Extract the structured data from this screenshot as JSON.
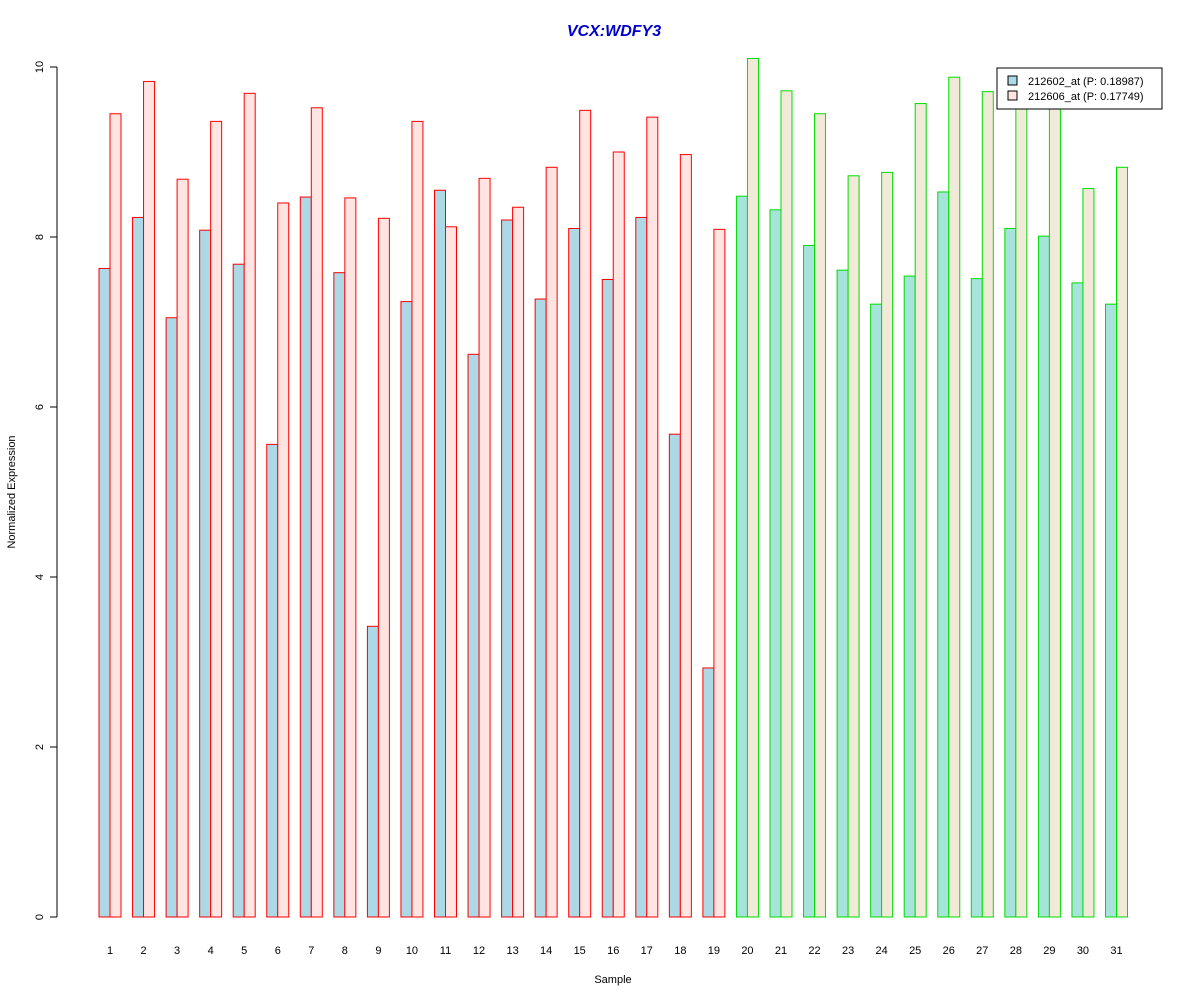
{
  "chart_data": {
    "type": "bar",
    "title": "VCX:WDFY3",
    "xlabel": "Sample",
    "ylabel": "Normalized Expression",
    "ylim": [
      0,
      10
    ],
    "yticks": [
      "0",
      "2",
      "4",
      "6",
      "8",
      "10"
    ],
    "grid": false,
    "legend_position": "top-right",
    "categories": [
      "1",
      "2",
      "3",
      "4",
      "5",
      "6",
      "7",
      "8",
      "9",
      "10",
      "11",
      "12",
      "13",
      "14",
      "15",
      "16",
      "17",
      "18",
      "19",
      "20",
      "21",
      "22",
      "23",
      "24",
      "25",
      "26",
      "27",
      "28",
      "29",
      "30",
      "31"
    ],
    "groups": [
      {
        "samples": [
          1,
          19
        ],
        "border_color": "#ff0000"
      },
      {
        "samples": [
          20,
          31
        ],
        "border_color": "#00dd00"
      }
    ],
    "series": [
      {
        "name": "212602_at (P: 0.18987)",
        "fill_colors": [
          "#add8e6",
          "#a6e3da"
        ],
        "values": [
          7.63,
          8.23,
          7.05,
          8.08,
          7.68,
          5.56,
          8.47,
          7.58,
          3.42,
          7.24,
          8.55,
          6.62,
          8.2,
          7.27,
          8.1,
          7.5,
          8.23,
          5.68,
          2.93,
          8.48,
          8.32,
          7.9,
          7.61,
          7.21,
          7.54,
          8.53,
          7.51,
          8.1,
          8.01,
          7.46,
          7.21
        ]
      },
      {
        "name": "212606_at (P: 0.17749)",
        "fill_colors": [
          "#ffe4e1",
          "#f2ead8"
        ],
        "values": [
          9.45,
          9.83,
          8.68,
          9.36,
          9.69,
          8.4,
          9.52,
          8.46,
          8.22,
          9.36,
          8.12,
          8.69,
          8.35,
          8.82,
          9.49,
          9.0,
          9.41,
          8.97,
          8.09,
          10.1,
          9.72,
          9.45,
          8.72,
          8.76,
          9.57,
          9.88,
          9.71,
          9.53,
          9.58,
          8.57,
          8.82
        ]
      }
    ],
    "colors": {
      "title": "#0000cc",
      "axis": "#000000",
      "legend_border": "#000000"
    }
  }
}
